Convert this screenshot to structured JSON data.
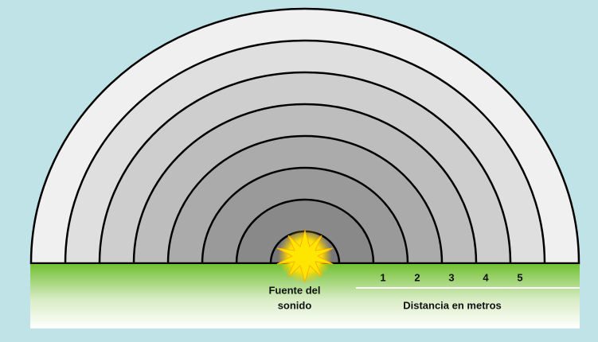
{
  "source_label": {
    "lines": [
      "Fuente del",
      "sonido"
    ]
  },
  "distance_scale": {
    "ticks": [
      1,
      2,
      3,
      4,
      5
    ],
    "label": "Distancia en metros"
  }
}
